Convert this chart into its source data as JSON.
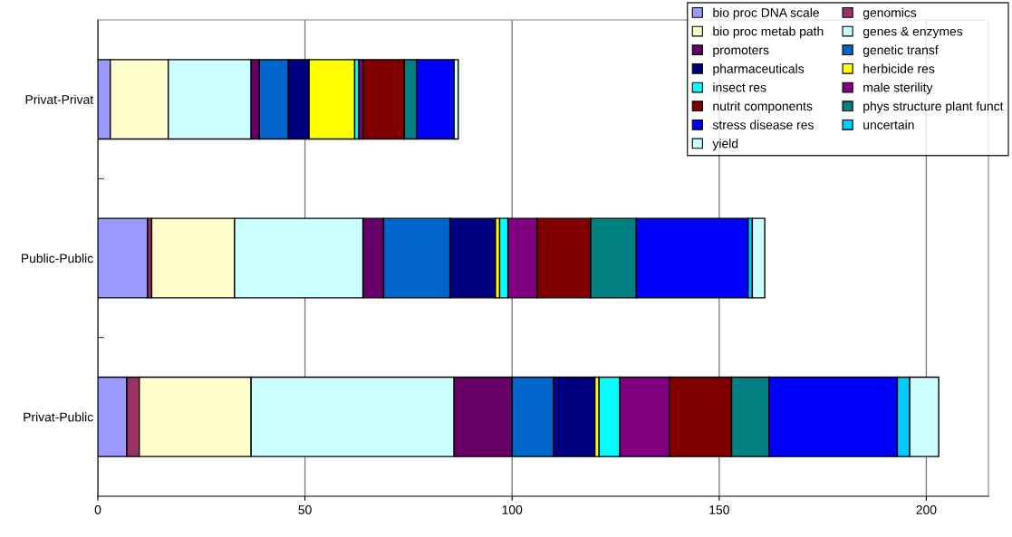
{
  "chart_data": {
    "type": "bar",
    "orientation": "horizontal",
    "stacked": true,
    "categories": [
      "Privat-Privat",
      "Public-Public",
      "Privat-Public"
    ],
    "series": [
      {
        "name": "bio proc DNA scale",
        "color": "#9999ff",
        "values": [
          3,
          12,
          7
        ]
      },
      {
        "name": "genomics",
        "color": "#993366",
        "values": [
          0,
          1,
          3
        ]
      },
      {
        "name": "bio proc metab path",
        "color": "#ffffcc",
        "values": [
          14,
          20,
          27
        ]
      },
      {
        "name": "genes & enzymes",
        "color": "#ccffff",
        "values": [
          20,
          31,
          49
        ]
      },
      {
        "name": "promoters",
        "color": "#660066",
        "values": [
          2,
          5,
          14
        ]
      },
      {
        "name": "genetic transf",
        "color": "#0066cc",
        "values": [
          7,
          16,
          10
        ]
      },
      {
        "name": "pharmaceuticals",
        "color": "#000080",
        "values": [
          5,
          11,
          10
        ]
      },
      {
        "name": "herbicide res",
        "color": "#ffff00",
        "values": [
          11,
          1,
          1
        ]
      },
      {
        "name": "insect res",
        "color": "#00ffff",
        "values": [
          1,
          2,
          5
        ]
      },
      {
        "name": "male sterility",
        "color": "#800080",
        "values": [
          1,
          7,
          12
        ]
      },
      {
        "name": "nutrit components",
        "color": "#800000",
        "values": [
          10,
          13,
          15
        ]
      },
      {
        "name": "phys structure plant funct",
        "color": "#008080",
        "values": [
          3,
          11,
          9
        ]
      },
      {
        "name": "stress disease res",
        "color": "#0000ff",
        "values": [
          9,
          27,
          31
        ]
      },
      {
        "name": "uncertain",
        "color": "#00ccff",
        "values": [
          0,
          1,
          3
        ]
      },
      {
        "name": "yield",
        "color": "#ccffff",
        "values": [
          1,
          3,
          7
        ]
      }
    ],
    "xlim": [
      0,
      215
    ],
    "xticks": [
      0,
      50,
      100,
      150,
      200
    ],
    "grid": "x",
    "legend": "top right"
  }
}
